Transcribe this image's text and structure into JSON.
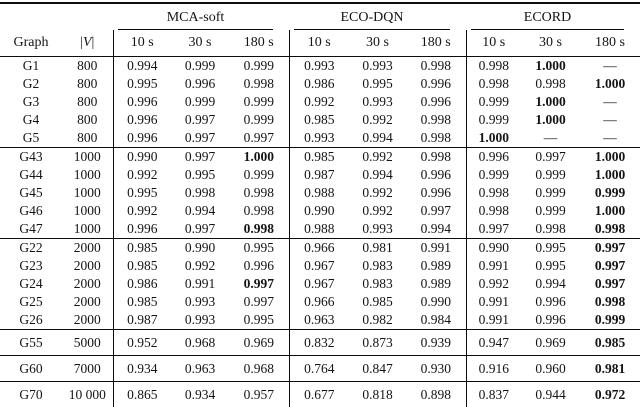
{
  "table": {
    "groups": [
      "MCA-soft",
      "ECO-DQN",
      "ECORD"
    ],
    "columns": {
      "graph": "Graph",
      "v_open": "|",
      "v_symbol": "V",
      "v_close": "|",
      "times": [
        "10 s",
        "30 s",
        "180 s"
      ]
    },
    "sections": [
      {
        "rows": [
          {
            "graph": "G1",
            "vertices": "800",
            "values": [
              "0.994",
              "0.999",
              "0.999",
              "0.993",
              "0.993",
              "0.998",
              "0.998",
              "1.000",
              "—"
            ],
            "bold_indices": [
              7
            ]
          },
          {
            "graph": "G2",
            "vertices": "800",
            "values": [
              "0.995",
              "0.996",
              "0.998",
              "0.986",
              "0.995",
              "0.996",
              "0.998",
              "0.998",
              "1.000"
            ],
            "bold_indices": [
              8
            ]
          },
          {
            "graph": "G3",
            "vertices": "800",
            "values": [
              "0.996",
              "0.999",
              "0.999",
              "0.992",
              "0.993",
              "0.996",
              "0.999",
              "1.000",
              "—"
            ],
            "bold_indices": [
              7
            ]
          },
          {
            "graph": "G4",
            "vertices": "800",
            "values": [
              "0.996",
              "0.997",
              "0.999",
              "0.985",
              "0.992",
              "0.998",
              "0.999",
              "1.000",
              "—"
            ],
            "bold_indices": [
              7
            ]
          },
          {
            "graph": "G5",
            "vertices": "800",
            "values": [
              "0.996",
              "0.997",
              "0.997",
              "0.993",
              "0.994",
              "0.998",
              "1.000",
              "—",
              "—"
            ],
            "bold_indices": [
              6
            ]
          }
        ]
      },
      {
        "rows": [
          {
            "graph": "G43",
            "vertices": "1000",
            "values": [
              "0.990",
              "0.997",
              "1.000",
              "0.985",
              "0.992",
              "0.998",
              "0.996",
              "0.997",
              "1.000"
            ],
            "bold_indices": [
              2,
              8
            ]
          },
          {
            "graph": "G44",
            "vertices": "1000",
            "values": [
              "0.992",
              "0.995",
              "0.999",
              "0.987",
              "0.994",
              "0.996",
              "0.999",
              "0.999",
              "1.000"
            ],
            "bold_indices": [
              8
            ]
          },
          {
            "graph": "G45",
            "vertices": "1000",
            "values": [
              "0.995",
              "0.998",
              "0.998",
              "0.988",
              "0.992",
              "0.996",
              "0.998",
              "0.999",
              "0.999"
            ],
            "bold_indices": [
              8
            ]
          },
          {
            "graph": "G46",
            "vertices": "1000",
            "values": [
              "0.992",
              "0.994",
              "0.998",
              "0.990",
              "0.992",
              "0.997",
              "0.998",
              "0.999",
              "1.000"
            ],
            "bold_indices": [
              8
            ]
          },
          {
            "graph": "G47",
            "vertices": "1000",
            "values": [
              "0.996",
              "0.997",
              "0.998",
              "0.988",
              "0.993",
              "0.994",
              "0.997",
              "0.998",
              "0.998"
            ],
            "bold_indices": [
              2,
              8
            ]
          }
        ]
      },
      {
        "rows": [
          {
            "graph": "G22",
            "vertices": "2000",
            "values": [
              "0.985",
              "0.990",
              "0.995",
              "0.966",
              "0.981",
              "0.991",
              "0.990",
              "0.995",
              "0.997"
            ],
            "bold_indices": [
              8
            ]
          },
          {
            "graph": "G23",
            "vertices": "2000",
            "values": [
              "0.985",
              "0.992",
              "0.996",
              "0.967",
              "0.983",
              "0.989",
              "0.991",
              "0.995",
              "0.997"
            ],
            "bold_indices": [
              8
            ]
          },
          {
            "graph": "G24",
            "vertices": "2000",
            "values": [
              "0.986",
              "0.991",
              "0.997",
              "0.967",
              "0.983",
              "0.989",
              "0.992",
              "0.994",
              "0.997"
            ],
            "bold_indices": [
              2,
              8
            ]
          },
          {
            "graph": "G25",
            "vertices": "2000",
            "values": [
              "0.985",
              "0.993",
              "0.997",
              "0.966",
              "0.985",
              "0.990",
              "0.991",
              "0.996",
              "0.998"
            ],
            "bold_indices": [
              8
            ]
          },
          {
            "graph": "G26",
            "vertices": "2000",
            "values": [
              "0.987",
              "0.993",
              "0.995",
              "0.963",
              "0.982",
              "0.984",
              "0.991",
              "0.996",
              "0.999"
            ],
            "bold_indices": [
              8
            ]
          }
        ]
      },
      {
        "rows": [
          {
            "graph": "G55",
            "vertices": "5000",
            "values": [
              "0.952",
              "0.968",
              "0.969",
              "0.832",
              "0.873",
              "0.939",
              "0.947",
              "0.969",
              "0.985"
            ],
            "bold_indices": [
              8
            ]
          }
        ]
      },
      {
        "rows": [
          {
            "graph": "G60",
            "vertices": "7000",
            "values": [
              "0.934",
              "0.963",
              "0.968",
              "0.764",
              "0.847",
              "0.930",
              "0.916",
              "0.960",
              "0.981"
            ],
            "bold_indices": [
              8
            ]
          }
        ]
      },
      {
        "rows": [
          {
            "graph": "G70",
            "vertices": "10 000",
            "values": [
              "0.865",
              "0.934",
              "0.957",
              "0.677",
              "0.818",
              "0.898",
              "0.837",
              "0.944",
              "0.972"
            ],
            "bold_indices": [
              8
            ]
          }
        ]
      }
    ]
  }
}
